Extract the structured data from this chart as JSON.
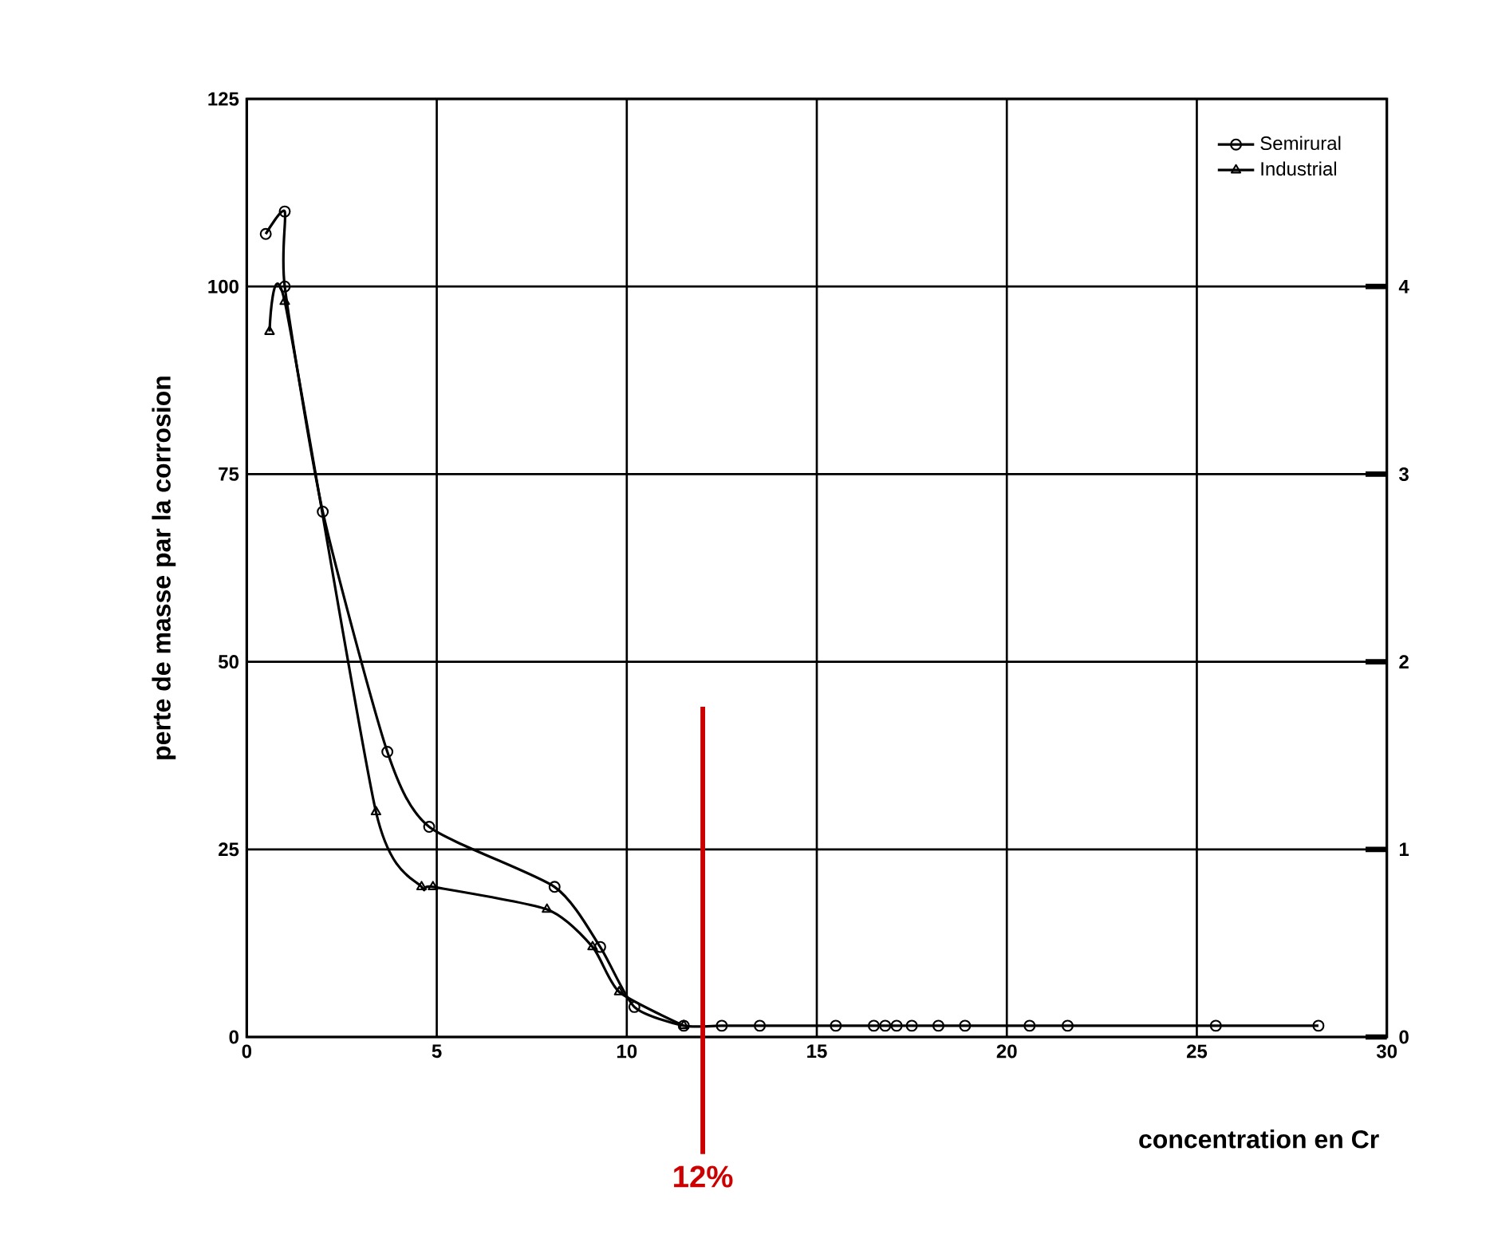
{
  "chart_data": {
    "type": "line",
    "xlabel": "concentration en Cr",
    "ylabel": "perte de masse par la corrosion",
    "xlim": [
      0,
      30
    ],
    "xticks": [
      0,
      5,
      10,
      15,
      20,
      25,
      30
    ],
    "ylim": [
      0,
      125
    ],
    "yticks": [
      0,
      25,
      50,
      75,
      100,
      125
    ],
    "y2lim": [
      0,
      5
    ],
    "y2ticks": [
      0,
      1,
      2,
      3,
      4
    ],
    "grid": true,
    "legend": "top right",
    "line_style": "solid",
    "series": [
      {
        "name": "Semirural",
        "color": "#000000",
        "marker": "circle",
        "x": [
          0.5,
          1.0,
          1.0,
          2.0,
          3.7,
          4.8,
          8.1,
          9.3,
          10.2,
          11.5,
          12.5,
          13.5,
          15.5,
          16.5,
          16.8,
          17.1,
          17.5,
          18.2,
          18.9,
          20.6,
          21.6,
          25.5,
          28.2
        ],
        "values": [
          107,
          110,
          100,
          70,
          38,
          28,
          20,
          12,
          4,
          1.5,
          1.5,
          1.5,
          1.5,
          1.5,
          1.5,
          1.5,
          1.5,
          1.5,
          1.5,
          1.5,
          1.5,
          1.5,
          1.5
        ]
      },
      {
        "name": "Industrial",
        "color": "#000000",
        "marker": "triangle",
        "x": [
          0.6,
          1.0,
          3.4,
          4.6,
          4.9,
          7.9,
          9.1,
          9.8,
          11.5
        ],
        "values": [
          94,
          98,
          30,
          20,
          20,
          17,
          12,
          6,
          1.5
        ]
      }
    ],
    "ref_lines": [
      {
        "axis": "x",
        "value": 12,
        "label": "12%",
        "color": "#cc0000"
      }
    ]
  }
}
